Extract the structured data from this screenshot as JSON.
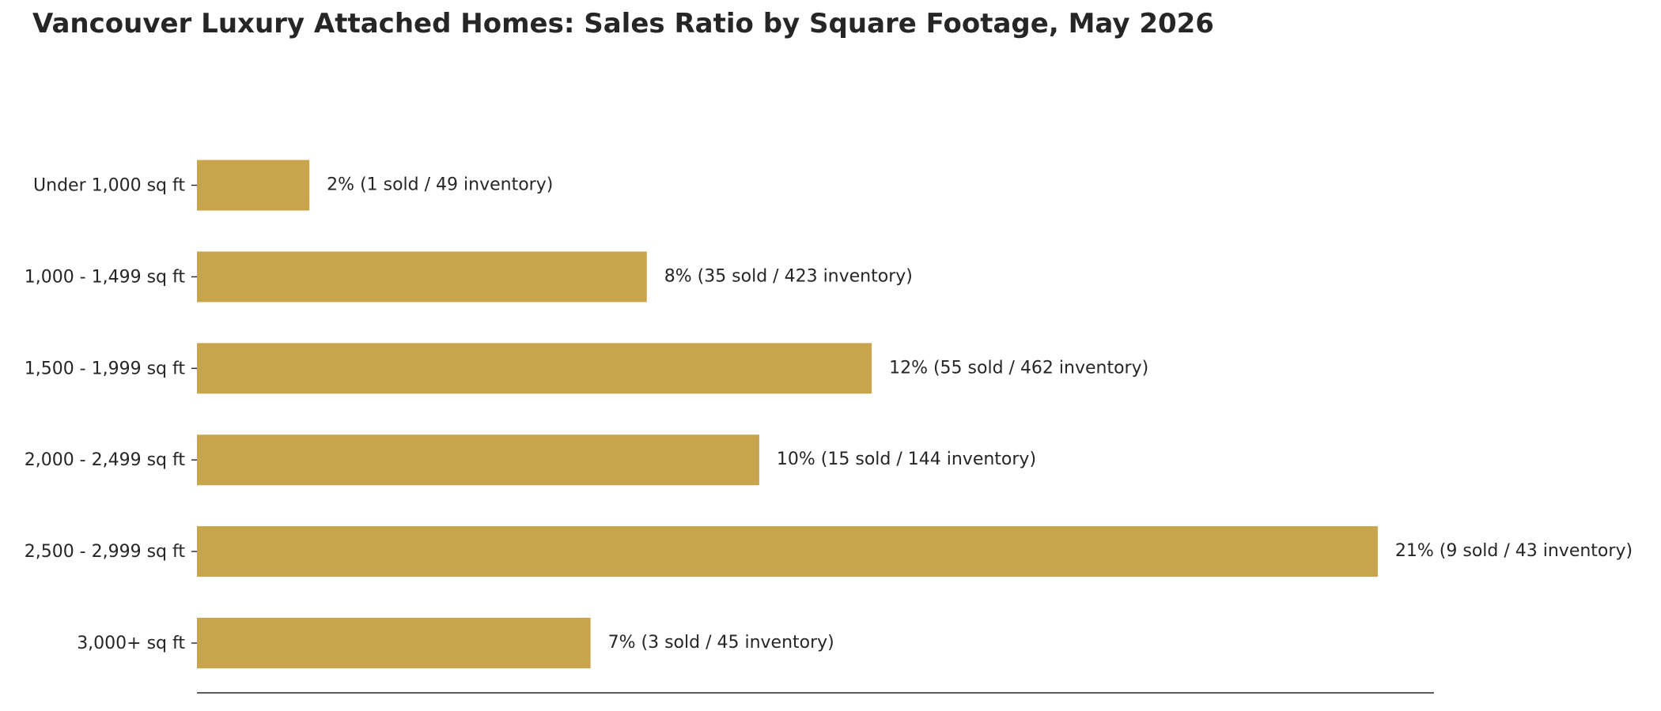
{
  "chart_data": {
    "type": "bar",
    "orientation": "horizontal",
    "title": "Vancouver Luxury Attached Homes: Sales Ratio by Square Footage, May 2026",
    "xlabel": "",
    "ylabel": "",
    "xlim": [
      0,
      22
    ],
    "grid": false,
    "bar_color": "#C8A44D",
    "categories": [
      "Under 1,000 sq ft",
      "1,000 - 1,499 sq ft",
      "1,500 - 1,999 sq ft",
      "2,000 - 2,499 sq ft",
      "2,500 - 2,999 sq ft",
      "3,000+ sq ft"
    ],
    "values": [
      2,
      8,
      12,
      10,
      21,
      7
    ],
    "data_labels": [
      "2%  (1 sold / 49 inventory)",
      "8%  (35 sold / 423 inventory)",
      "12%  (55 sold / 462 inventory)",
      "10%  (15 sold / 144 inventory)",
      "21%  (9 sold / 43 inventory)",
      "7%  (3 sold / 45 inventory)"
    ]
  }
}
